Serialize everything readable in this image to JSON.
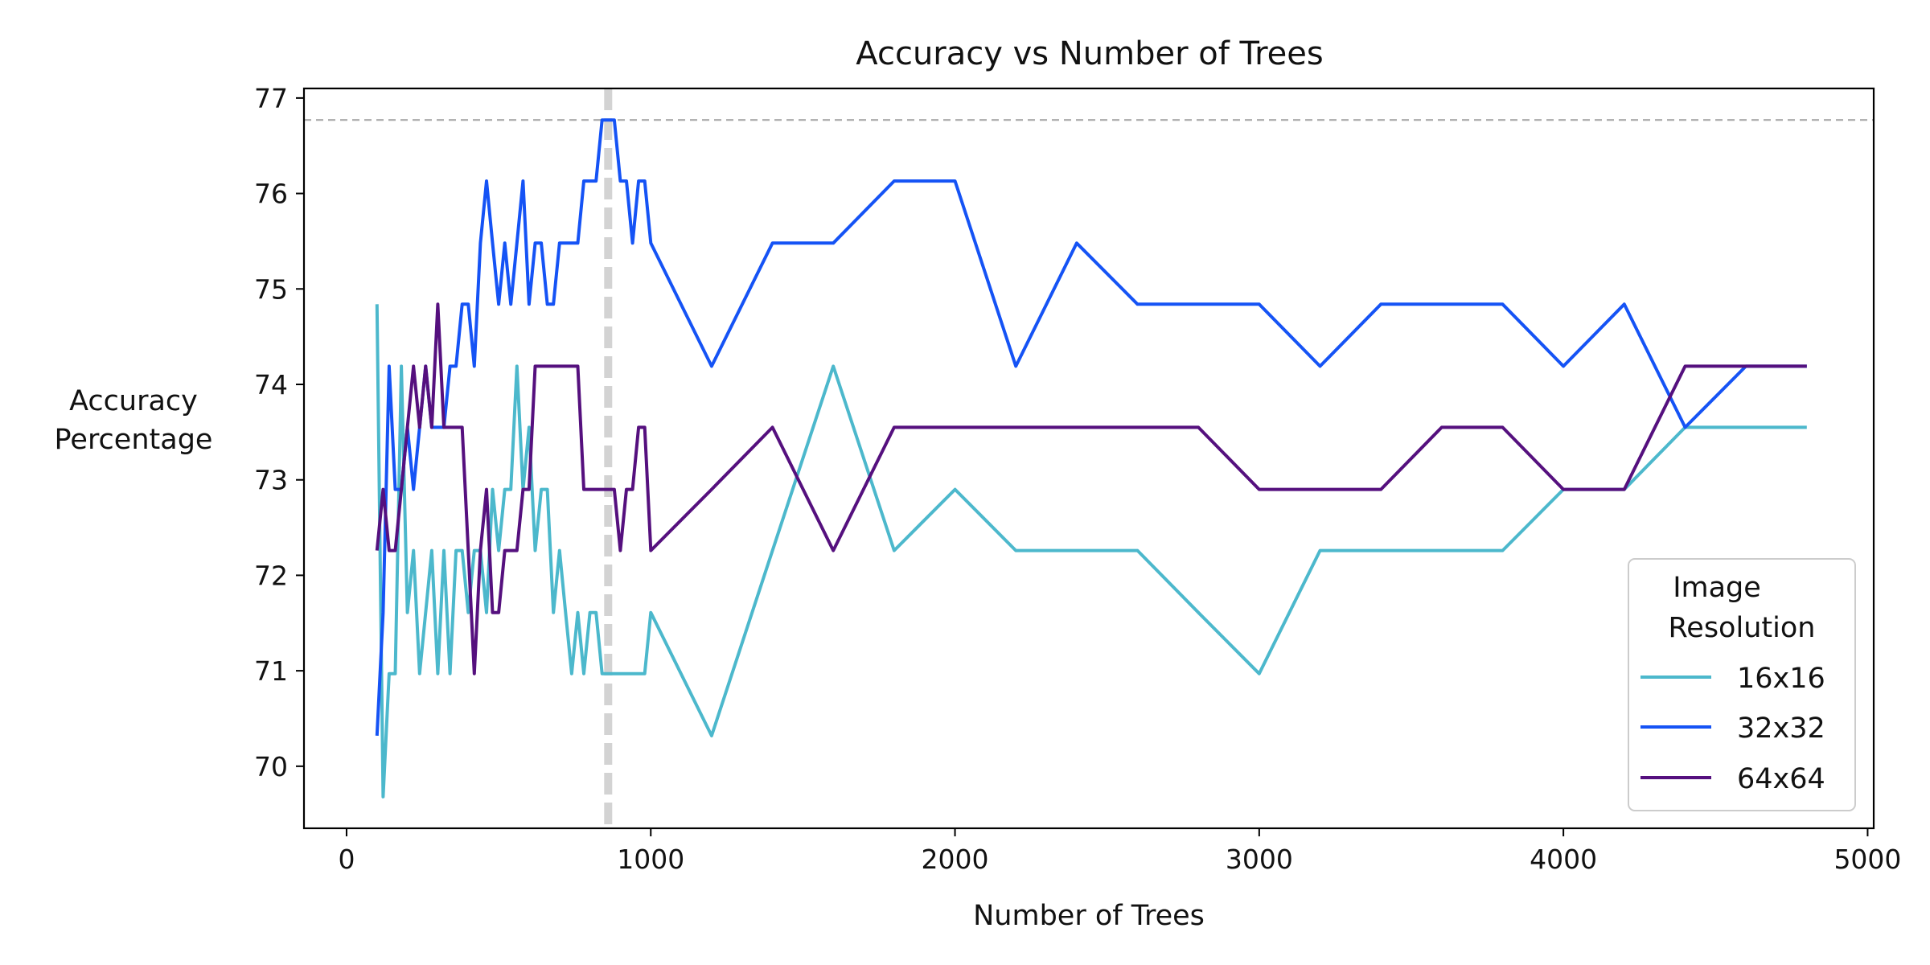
{
  "chart_data": {
    "type": "line",
    "title": "Accuracy vs Number of Trees",
    "xlabel": "Number of Trees",
    "ylabel_lines": [
      "Accuracy",
      "Percentage"
    ],
    "xlim": [
      -140,
      5020
    ],
    "ylim": [
      69.35,
      77.1
    ],
    "x_ticks": [
      0,
      1000,
      2000,
      3000,
      4000,
      5000
    ],
    "y_ticks": [
      70,
      71,
      72,
      73,
      74,
      75,
      76,
      77
    ],
    "reference_lines": {
      "horizontal_y": 76.77,
      "vertical_x": 860,
      "color": "#aaaaaa",
      "vertical_color": "#d3d3d3"
    },
    "legend": {
      "title_lines": [
        "Image",
        "Resolution"
      ],
      "placement": "bottom-right"
    },
    "series": [
      {
        "name": "16x16",
        "color": "#4cb8cc",
        "x": [
          100,
          120,
          140,
          160,
          180,
          200,
          220,
          240,
          260,
          280,
          300,
          320,
          340,
          360,
          380,
          400,
          420,
          440,
          460,
          480,
          500,
          520,
          540,
          560,
          580,
          600,
          620,
          640,
          660,
          680,
          700,
          720,
          740,
          760,
          780,
          800,
          820,
          840,
          860,
          880,
          900,
          920,
          940,
          960,
          980,
          1000,
          1200,
          1400,
          1600,
          1800,
          2000,
          2200,
          2400,
          2600,
          2800,
          3000,
          3200,
          3400,
          3600,
          3800,
          4000,
          4200,
          4400,
          4600,
          4800
        ],
        "y": [
          74.84,
          69.68,
          70.97,
          70.97,
          74.19,
          71.61,
          72.26,
          70.97,
          71.61,
          72.26,
          70.97,
          72.26,
          70.97,
          72.26,
          72.26,
          71.61,
          72.26,
          72.26,
          71.61,
          72.9,
          72.26,
          72.9,
          72.9,
          74.19,
          72.9,
          73.55,
          72.26,
          72.9,
          72.9,
          71.61,
          72.26,
          71.61,
          70.97,
          71.61,
          70.97,
          71.61,
          71.61,
          70.97,
          70.97,
          70.97,
          70.97,
          70.97,
          70.97,
          70.97,
          70.97,
          71.61,
          70.32,
          72.26,
          74.19,
          72.26,
          72.9,
          72.26,
          72.26,
          72.26,
          71.61,
          70.97,
          72.26,
          72.26,
          72.26,
          72.26,
          72.9,
          72.9,
          73.55,
          73.55,
          73.55
        ]
      },
      {
        "name": "32x32",
        "color": "#1553f5",
        "x": [
          100,
          120,
          140,
          160,
          180,
          200,
          220,
          240,
          260,
          280,
          300,
          320,
          340,
          360,
          380,
          400,
          420,
          440,
          460,
          480,
          500,
          520,
          540,
          560,
          580,
          600,
          620,
          640,
          660,
          680,
          700,
          720,
          740,
          760,
          780,
          800,
          820,
          840,
          860,
          880,
          900,
          920,
          940,
          960,
          980,
          1000,
          1200,
          1400,
          1600,
          1800,
          2000,
          2200,
          2400,
          2600,
          2800,
          3000,
          3200,
          3400,
          3600,
          3800,
          4000,
          4200,
          4400,
          4600,
          4800
        ],
        "y": [
          70.32,
          71.61,
          74.19,
          72.9,
          72.9,
          73.55,
          72.9,
          73.55,
          74.19,
          73.55,
          73.55,
          73.55,
          74.19,
          74.19,
          74.84,
          74.84,
          74.19,
          75.48,
          76.13,
          75.48,
          74.84,
          75.48,
          74.84,
          75.48,
          76.13,
          74.84,
          75.48,
          75.48,
          74.84,
          74.84,
          75.48,
          75.48,
          75.48,
          75.48,
          76.13,
          76.13,
          76.13,
          76.77,
          76.77,
          76.77,
          76.13,
          76.13,
          75.48,
          76.13,
          76.13,
          75.48,
          74.19,
          75.48,
          75.48,
          76.13,
          76.13,
          74.19,
          75.48,
          74.84,
          74.84,
          74.84,
          74.19,
          74.84,
          74.84,
          74.84,
          74.19,
          74.84,
          73.55,
          74.19,
          74.19
        ]
      },
      {
        "name": "64x64",
        "color": "#55107e",
        "x": [
          100,
          120,
          140,
          160,
          180,
          200,
          220,
          240,
          260,
          280,
          300,
          320,
          340,
          360,
          380,
          400,
          420,
          440,
          460,
          480,
          500,
          520,
          540,
          560,
          580,
          600,
          620,
          640,
          660,
          680,
          700,
          720,
          740,
          760,
          780,
          800,
          820,
          840,
          860,
          880,
          900,
          920,
          940,
          960,
          980,
          1000,
          1200,
          1400,
          1600,
          1800,
          2000,
          2200,
          2400,
          2600,
          2800,
          3000,
          3200,
          3400,
          3600,
          3800,
          4000,
          4200,
          4400,
          4600,
          4800
        ],
        "y": [
          72.26,
          72.9,
          72.26,
          72.26,
          72.9,
          73.55,
          74.19,
          73.55,
          74.19,
          73.55,
          74.84,
          73.55,
          73.55,
          73.55,
          73.55,
          72.26,
          70.97,
          72.26,
          72.9,
          71.61,
          71.61,
          72.26,
          72.26,
          72.26,
          72.9,
          72.9,
          74.19,
          74.19,
          74.19,
          74.19,
          74.19,
          74.19,
          74.19,
          74.19,
          72.9,
          72.9,
          72.9,
          72.9,
          72.9,
          72.9,
          72.26,
          72.9,
          72.9,
          73.55,
          73.55,
          72.26,
          72.9,
          73.55,
          72.26,
          73.55,
          73.55,
          73.55,
          73.55,
          73.55,
          73.55,
          72.9,
          72.9,
          72.9,
          73.55,
          73.55,
          72.9,
          72.9,
          74.19,
          74.19,
          74.19
        ]
      }
    ]
  }
}
